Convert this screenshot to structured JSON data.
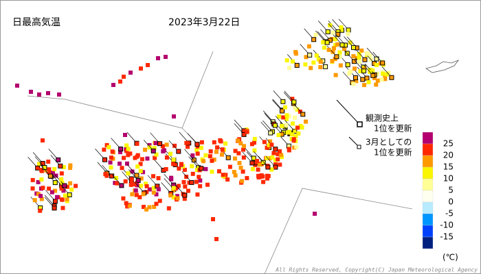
{
  "header": {
    "title": "日最高気温",
    "date": "2023年3月22日"
  },
  "legend": {
    "colors": [
      "#b4006e",
      "#ff2800",
      "#ff9900",
      "#faf500",
      "#ffff96",
      "#fffff0",
      "#b9ebff",
      "#0096ff",
      "#0041ff",
      "#002080"
    ],
    "labels": [
      25,
      20,
      15,
      10,
      5,
      0,
      -5,
      -10,
      -15
    ],
    "unit": "(℃)"
  },
  "annotations": [
    {
      "lines": [
        "観測史上",
        "1位を更新"
      ]
    },
    {
      "lines": [
        "3月としての",
        "1位を更新"
      ]
    }
  ],
  "footer": "All Rights Reserved, Copyright(C) Japan Meteorological Agency"
}
